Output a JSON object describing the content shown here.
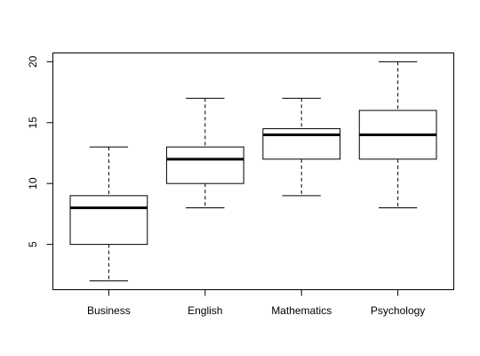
{
  "chart_data": {
    "type": "boxplot",
    "categories": [
      "Business",
      "English",
      "Mathematics",
      "Psychology"
    ],
    "boxes": [
      {
        "min": 2,
        "q1": 5,
        "median": 8,
        "q3": 9,
        "max": 13
      },
      {
        "min": 8,
        "q1": 10,
        "median": 12,
        "q3": 13,
        "max": 17
      },
      {
        "min": 9,
        "q1": 12,
        "median": 14,
        "q3": 14.5,
        "max": 17
      },
      {
        "min": 8,
        "q1": 12,
        "median": 14,
        "q3": 16,
        "max": 20
      }
    ],
    "yticks": [
      "5",
      "10",
      "15",
      "20"
    ],
    "ylim": [
      1.28,
      20.72
    ],
    "title": "",
    "xlabel": "",
    "ylabel": "",
    "grid": false,
    "colors": {
      "box_fill": "#ffffff",
      "stroke": "#000000",
      "median": "#000000"
    }
  }
}
